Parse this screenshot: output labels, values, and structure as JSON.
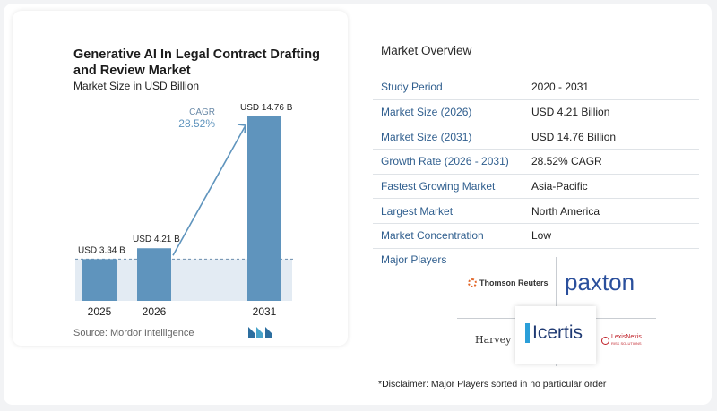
{
  "chart_data": {
    "type": "bar",
    "title": "Generative AI In Legal Contract Drafting and Review Market",
    "subtitle": "Market Size in USD Billion",
    "categories": [
      "2025",
      "2026",
      "2031"
    ],
    "values": [
      3.34,
      4.21,
      14.76
    ],
    "value_labels": [
      "USD 3.34 B",
      "USD 4.21 B",
      "USD 14.76 B"
    ],
    "cagr_label": "CAGR",
    "cagr_value": "28.52%",
    "ylim": [
      0,
      14.76
    ],
    "grid": false,
    "colors": {
      "bar": "#5f94bd",
      "bar_top": "#6fa2c8",
      "arrow": "#5f94bd",
      "baseline_band": "#e3ebf3",
      "dash": "#6d8fae"
    }
  },
  "source": "Source:  Mordor Intelligence",
  "overview": {
    "title": "Market Overview",
    "rows": [
      {
        "key": "Study Period",
        "value": "2020 - 2031"
      },
      {
        "key": "Market Size (2026)",
        "value": "USD 4.21 Billion"
      },
      {
        "key": "Market Size (2031)",
        "value": "USD 14.76 Billion"
      },
      {
        "key": "Growth Rate (2026 - 2031)",
        "value": "28.52% CAGR"
      },
      {
        "key": "Fastest Growing Market",
        "value": "Asia-Pacific"
      },
      {
        "key": "Largest Market",
        "value": "North America"
      },
      {
        "key": "Market Concentration",
        "value": "Low"
      }
    ]
  },
  "players": {
    "title": "Major Players",
    "thomson_reuters": "Thomson Reuters",
    "paxton": "paxton",
    "harvey": "Harvey",
    "icertis": "Icertis",
    "lexisnexis": "LexisNexis",
    "lexisnexis_sub": "RISK SOLUTIONS"
  },
  "disclaimer": "*Disclaimer: Major Players sorted in no particular order"
}
